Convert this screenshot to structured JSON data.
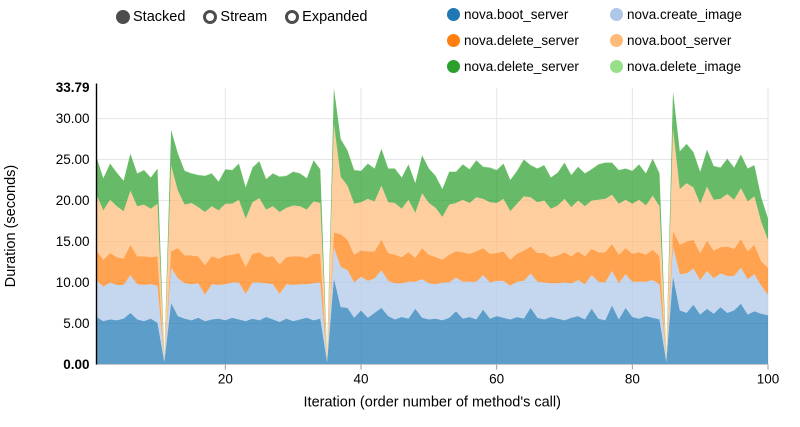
{
  "controls": {
    "items": [
      {
        "label": "Stacked",
        "selected": true
      },
      {
        "label": "Stream",
        "selected": false
      },
      {
        "label": "Expanded",
        "selected": false
      }
    ]
  },
  "legend": {
    "items": [
      {
        "label": "nova.boot_server",
        "color": "#1f77b4"
      },
      {
        "label": "nova.create_image",
        "color": "#aec7e8"
      },
      {
        "label": "nova.delete_server",
        "color": "#ff7f0e"
      },
      {
        "label": "nova.boot_server",
        "color": "#ffbb78"
      },
      {
        "label": "nova.delete_server",
        "color": "#2ca02c"
      },
      {
        "label": "nova.delete_image",
        "color": "#98df8a"
      }
    ]
  },
  "chart_data": {
    "type": "area",
    "mode": "stacked",
    "title": "",
    "xlabel": "Iteration (order number of method's call)",
    "ylabel": "Duration (seconds)",
    "xlim": [
      1,
      100
    ],
    "ylim": [
      0,
      33.79
    ],
    "grid": true,
    "legend_position": "top-right",
    "fill_opacity": 0.72,
    "grid_color": "#e5e5e5",
    "axis_color": "#000000",
    "x_ticks": [
      {
        "value": 20,
        "label": "20"
      },
      {
        "value": 40,
        "label": "40"
      },
      {
        "value": 60,
        "label": "60"
      },
      {
        "value": 80,
        "label": "80"
      },
      {
        "value": 100,
        "label": "100"
      }
    ],
    "y_ticks": [
      {
        "value": 33.79,
        "label": "33.79",
        "bold": true
      },
      {
        "value": 30,
        "label": "30.00",
        "bold": false
      },
      {
        "value": 25,
        "label": "25.00",
        "bold": false
      },
      {
        "value": 20,
        "label": "20.00",
        "bold": false
      },
      {
        "value": 15,
        "label": "15.00",
        "bold": false
      },
      {
        "value": 10,
        "label": "10.00",
        "bold": false
      },
      {
        "value": 5,
        "label": "5.00",
        "bold": false
      },
      {
        "value": 0,
        "label": "0.00",
        "bold": true
      }
    ],
    "series": [
      {
        "name": "nova.boot_server",
        "color": "#1f77b4",
        "values": [
          5.8,
          5.3,
          5.5,
          5.4,
          5.6,
          6.3,
          5.5,
          5.3,
          5.6,
          5.1,
          0.3,
          7.5,
          5.9,
          5.6,
          5.4,
          5.7,
          5.3,
          5.5,
          5.6,
          5.4,
          5.7,
          5.5,
          5.3,
          5.6,
          5.4,
          5.8,
          5.5,
          5.2,
          5.6,
          5.3,
          5.5,
          5.7,
          5.4,
          5.6,
          0.3,
          10.5,
          7.0,
          6.9,
          5.7,
          6.6,
          5.7,
          6.3,
          6.9,
          5.9,
          5.5,
          5.8,
          5.6,
          6.8,
          5.7,
          5.5,
          5.6,
          5.4,
          5.7,
          6.5,
          5.6,
          5.8,
          5.5,
          6.7,
          5.6,
          5.9,
          5.7,
          5.5,
          5.8,
          5.6,
          6.9,
          5.7,
          5.5,
          5.8,
          5.6,
          5.4,
          5.7,
          5.9,
          5.5,
          6.8,
          5.6,
          5.4,
          7.2,
          5.5,
          6.9,
          5.8,
          5.6,
          5.9,
          5.7,
          5.5,
          0.3,
          10.8,
          6.6,
          6.3,
          7.3,
          6.1,
          6.8,
          6.2,
          7.0,
          6.3,
          6.6,
          7.4,
          6.1,
          6.5,
          6.2,
          6.0
        ]
      },
      {
        "name": "nova.create_image",
        "color": "#aec7e8",
        "values": [
          4.5,
          4.2,
          4.5,
          4.3,
          4.1,
          4.6,
          4.3,
          4.4,
          4.2,
          4.5,
          0.1,
          4.3,
          4.6,
          4.3,
          4.4,
          4.2,
          3.2,
          4.3,
          4.1,
          4.4,
          4.3,
          4.5,
          3.3,
          4.4,
          4.6,
          4.1,
          4.3,
          3.4,
          4.2,
          4.4,
          4.3,
          4.1,
          4.5,
          4.4,
          0.1,
          3.8,
          4.9,
          4.6,
          4.3,
          4.1,
          4.5,
          4.2,
          4.6,
          4.3,
          4.4,
          4.1,
          4.5,
          3.3,
          4.7,
          4.4,
          4.2,
          4.6,
          4.3,
          4.1,
          4.5,
          4.3,
          4.6,
          4.2,
          4.4,
          4.3,
          4.5,
          4.1,
          4.3,
          4.6,
          4.2,
          4.4,
          4.5,
          4.1,
          4.3,
          4.6,
          4.2,
          4.4,
          4.3,
          4.1,
          4.5,
          4.6,
          4.2,
          4.4,
          4.1,
          4.3,
          4.5,
          4.2,
          4.6,
          4.3,
          0.1,
          3.6,
          4.4,
          4.8,
          4.4,
          4.2,
          4.6,
          4.3,
          4.1,
          4.5,
          4.2,
          4.4,
          4.3,
          4.5,
          3.4,
          2.5
        ]
      },
      {
        "name": "nova.delete_server",
        "color": "#ff7f0e",
        "values": [
          3.6,
          3.3,
          3.6,
          3.4,
          3.2,
          3.7,
          3.4,
          3.5,
          3.3,
          3.6,
          0.1,
          2.0,
          3.7,
          3.4,
          3.5,
          3.3,
          3.6,
          3.4,
          3.2,
          3.5,
          3.4,
          3.6,
          3.3,
          3.5,
          3.7,
          3.2,
          3.4,
          3.6,
          3.3,
          3.5,
          3.4,
          3.2,
          3.6,
          3.5,
          0.1,
          1.8,
          4.0,
          3.7,
          3.4,
          3.2,
          3.6,
          3.3,
          3.7,
          3.4,
          3.5,
          3.2,
          3.6,
          2.9,
          3.8,
          3.5,
          3.3,
          2.8,
          3.4,
          3.2,
          3.6,
          3.4,
          3.7,
          3.3,
          3.5,
          3.4,
          3.6,
          3.2,
          3.4,
          3.7,
          3.3,
          3.5,
          3.6,
          3.2,
          3.4,
          3.7,
          3.3,
          3.5,
          3.4,
          3.2,
          3.6,
          3.7,
          3.3,
          3.5,
          3.2,
          3.4,
          3.6,
          3.3,
          3.7,
          3.4,
          0.1,
          1.9,
          3.6,
          3.9,
          3.5,
          3.3,
          3.7,
          3.4,
          3.2,
          3.6,
          3.3,
          3.5,
          3.4,
          3.6,
          3.0,
          3.3
        ]
      },
      {
        "name": "nova.boot_server",
        "color": "#ffbb78",
        "values": [
          6.8,
          6.0,
          6.5,
          6.2,
          5.8,
          6.6,
          6.1,
          6.3,
          5.9,
          6.4,
          0.2,
          10.5,
          7.0,
          6.2,
          6.4,
          6.0,
          6.5,
          6.1,
          5.9,
          6.3,
          6.2,
          6.5,
          5.9,
          6.3,
          6.6,
          5.8,
          6.1,
          6.4,
          6.0,
          6.2,
          6.1,
          5.9,
          6.4,
          6.2,
          0.2,
          13.3,
          7.0,
          6.6,
          6.2,
          5.9,
          6.4,
          6.1,
          6.6,
          6.2,
          6.3,
          5.9,
          6.4,
          5.5,
          6.7,
          6.3,
          6.0,
          5.2,
          6.1,
          5.9,
          6.4,
          6.2,
          6.6,
          6.0,
          6.3,
          6.1,
          6.4,
          5.9,
          6.1,
          6.6,
          6.0,
          6.2,
          6.4,
          5.9,
          6.1,
          6.5,
          6.0,
          6.2,
          6.1,
          5.9,
          6.4,
          6.5,
          6.0,
          6.2,
          5.9,
          6.1,
          6.4,
          6.0,
          6.6,
          6.1,
          0.2,
          12.5,
          6.8,
          7.1,
          6.4,
          6.0,
          6.6,
          6.2,
          5.9,
          6.4,
          6.0,
          6.2,
          6.1,
          5.9,
          4.8,
          3.4
        ]
      },
      {
        "name": "nova.delete_server",
        "color": "#2ca02c",
        "values": [
          4.6,
          3.9,
          4.4,
          4.1,
          3.7,
          4.5,
          4.0,
          4.2,
          3.8,
          4.3,
          0.2,
          4.3,
          4.5,
          4.1,
          3.6,
          3.9,
          4.4,
          4.0,
          3.5,
          4.2,
          4.1,
          4.4,
          3.8,
          4.2,
          4.5,
          3.7,
          4.0,
          4.3,
          3.9,
          4.1,
          4.0,
          3.8,
          5.0,
          4.1,
          0.2,
          4.3,
          4.6,
          4.3,
          4.1,
          3.8,
          4.3,
          4.0,
          4.5,
          4.1,
          4.2,
          3.8,
          4.3,
          3.6,
          4.6,
          4.2,
          3.9,
          3.4,
          4.0,
          3.8,
          4.3,
          4.1,
          4.5,
          3.9,
          4.2,
          4.0,
          4.3,
          3.8,
          4.0,
          4.5,
          3.9,
          4.1,
          4.3,
          3.8,
          4.0,
          4.4,
          3.9,
          4.1,
          4.0,
          3.8,
          4.3,
          4.4,
          3.9,
          4.1,
          3.8,
          4.0,
          4.3,
          3.9,
          4.5,
          4.0,
          0.2,
          4.5,
          4.6,
          4.8,
          4.3,
          3.9,
          4.5,
          4.1,
          3.8,
          4.3,
          3.9,
          4.1,
          4.0,
          3.8,
          3.0,
          2.6
        ]
      },
      {
        "name": "nova.delete_image",
        "color": "#98df8a",
        "values": [
          0.05,
          0.05,
          0.05,
          0.05,
          0.05,
          0.05,
          0.05,
          0.05,
          0.05,
          0.05,
          0.05,
          0.05,
          0.05,
          0.05,
          0.05,
          0.05,
          0.05,
          0.05,
          0.05,
          0.05,
          0.05,
          0.05,
          0.05,
          0.05,
          0.05,
          0.05,
          0.05,
          0.05,
          0.05,
          0.05,
          0.05,
          0.05,
          0.05,
          0.05,
          0.05,
          0.05,
          0.05,
          0.05,
          0.05,
          0.05,
          0.05,
          0.05,
          0.05,
          0.05,
          0.05,
          0.05,
          0.05,
          0.05,
          0.05,
          0.05,
          0.05,
          0.05,
          0.05,
          0.05,
          0.05,
          0.05,
          0.05,
          0.05,
          0.05,
          0.05,
          0.05,
          0.05,
          0.05,
          0.05,
          0.05,
          0.05,
          0.05,
          0.05,
          0.05,
          0.05,
          0.05,
          0.05,
          0.05,
          0.05,
          0.05,
          0.05,
          0.05,
          0.05,
          0.05,
          0.05,
          0.05,
          0.05,
          0.05,
          0.05,
          0.05,
          0.05,
          0.05,
          0.05,
          0.05,
          0.05,
          0.05,
          0.05,
          0.05,
          0.05,
          0.05,
          0.05,
          0.05,
          0.05,
          0.05,
          0.05
        ]
      }
    ]
  }
}
